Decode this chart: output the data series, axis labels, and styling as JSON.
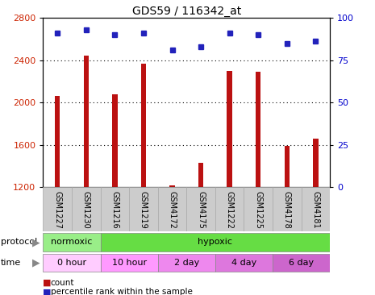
{
  "title": "GDS59 / 116342_at",
  "samples": [
    "GSM1227",
    "GSM1230",
    "GSM1216",
    "GSM1219",
    "GSM4172",
    "GSM4175",
    "GSM1222",
    "GSM1225",
    "GSM4178",
    "GSM4181"
  ],
  "counts": [
    2060,
    2440,
    2080,
    2370,
    1215,
    1430,
    2295,
    2290,
    1590,
    1660
  ],
  "percentiles": [
    91,
    93,
    90,
    91,
    81,
    83,
    91,
    90,
    85,
    86
  ],
  "ylim_left": [
    1200,
    2800
  ],
  "ylim_right": [
    0,
    100
  ],
  "yticks_left": [
    1200,
    1600,
    2000,
    2400,
    2800
  ],
  "yticks_right": [
    0,
    25,
    50,
    75,
    100
  ],
  "bar_color": "#bb1111",
  "dot_color": "#2222bb",
  "grid_color": "#000000",
  "bg_color": "#ffffff",
  "tick_label_color_left": "#cc2200",
  "tick_label_color_right": "#0000cc",
  "protocol_normoxic_color": "#99ee88",
  "protocol_hypoxic_color": "#66dd44",
  "time_colors": [
    "#ffccff",
    "#ff99ff",
    "#ee88ee",
    "#dd77dd",
    "#cc66cc"
  ],
  "sample_box_color": "#cccccc",
  "sample_box_edge": "#aaaaaa",
  "bar_width": 0.18
}
